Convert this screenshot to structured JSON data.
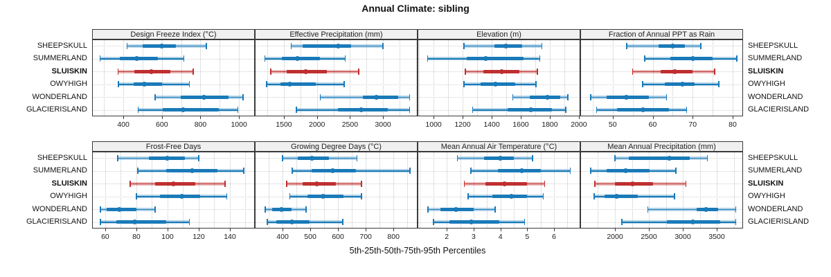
{
  "title": "Annual Climate: sibling",
  "axis_caption": "5th-25th-50th-75th-95th Percentiles",
  "percentile_labels": [
    "5th",
    "25th",
    "50th",
    "75th",
    "95th"
  ],
  "stations": [
    "SHEEPSKULL",
    "SUMMERLAND",
    "SLUISKIN",
    "OWYHIGH",
    "WONDERLAND",
    "GLACIERISLAND"
  ],
  "highlight_station": "SLUISKIN",
  "colors": {
    "series": "#1a7ab8",
    "highlight": "#be2f2f",
    "strip_bg": "#f0f0f0",
    "panel_border": "#3a3a3a",
    "grid": "#c4c4c4",
    "band_alpha": 0.32
  },
  "chart_data": {
    "type": "dotplot-interval",
    "layout_rows": 2,
    "layout_cols": 4,
    "percentiles": [
      5,
      25,
      50,
      75,
      95
    ],
    "panels": [
      {
        "title": "Design Freeze Index (°C)",
        "range": [
          238,
          1082
        ],
        "ticks": [
          400,
          600,
          800,
          1000
        ],
        "minor_step": 100,
        "values": {
          "SHEEPSKULL": [
            420,
            500,
            598,
            672,
            830
          ],
          "SUMMERLAND": [
            280,
            382,
            470,
            580,
            714
          ],
          "SLUISKIN": [
            373,
            456,
            546,
            644,
            762
          ],
          "OWYHIGH": [
            375,
            455,
            508,
            600,
            742
          ],
          "WONDERLAND": [
            565,
            696,
            819,
            944,
            1021
          ],
          "GLACIERISLAND": [
            476,
            605,
            711,
            894,
            994
          ]
        }
      },
      {
        "title": "Effective Precipitation (mm)",
        "range": [
          1060,
          3523
        ],
        "ticks": [
          1500,
          2000,
          2500,
          3000
        ],
        "minor_step": 250,
        "values": {
          "SHEEPSKULL": [
            1610,
            1780,
            2320,
            2520,
            3000
          ],
          "SUMMERLAND": [
            1210,
            1470,
            1700,
            2050,
            2430
          ],
          "SLUISKIN": [
            1300,
            1540,
            1830,
            2150,
            2630
          ],
          "OWYHIGH": [
            1240,
            1445,
            1590,
            1980,
            2410
          ],
          "WONDERLAND": [
            2050,
            2700,
            2900,
            3230,
            3400
          ],
          "GLACIERISLAND": [
            1690,
            2320,
            2670,
            3075,
            3400
          ]
        }
      },
      {
        "title": "Elevation (m)",
        "range": [
          890,
          2010
        ],
        "ticks": [
          1000,
          1200,
          1400,
          1600,
          1800,
          2000
        ],
        "minor_step": 100,
        "values": {
          "SHEEPSKULL": [
            1210,
            1420,
            1500,
            1610,
            1745
          ],
          "SUMMERLAND": [
            960,
            1230,
            1360,
            1620,
            1730
          ],
          "SLUISKIN": [
            1220,
            1345,
            1470,
            1590,
            1715
          ],
          "OWYHIGH": [
            1210,
            1325,
            1425,
            1560,
            1705
          ],
          "WONDERLAND": [
            1545,
            1660,
            1785,
            1870,
            1925
          ],
          "GLACIERISLAND": [
            1270,
            1510,
            1670,
            1815,
            1910
          ]
        }
      },
      {
        "title": "Fraction of Annual PPT as Rain",
        "range": [
          41.9,
          82.6
        ],
        "ticks": [
          50,
          60,
          70,
          80
        ],
        "minor_step": 5,
        "values": {
          "SHEEPSKULL": [
            53.5,
            61.5,
            65,
            68,
            72
          ],
          "SUMMERLAND": [
            58,
            64.5,
            70,
            75,
            81
          ],
          "SLUISKIN": [
            55,
            62,
            65.5,
            70,
            75.5
          ],
          "OWYHIGH": [
            57.5,
            63,
            67.5,
            70.5,
            76.5
          ],
          "WONDERLAND": [
            44.5,
            48.5,
            53.5,
            59,
            63.5
          ],
          "GLACIERISLAND": [
            46,
            51,
            57.5,
            64,
            68.5
          ]
        }
      },
      {
        "title": "Frost-Free Days",
        "range": [
          51.6,
          156
        ],
        "ticks": [
          60,
          80,
          100,
          120,
          140
        ],
        "minor_step": 10,
        "values": {
          "SHEEPSKULL": [
            68,
            88,
            100,
            111,
            120
          ],
          "SUMMERLAND": [
            81,
            99,
            116,
            132,
            149
          ],
          "SLUISKIN": [
            76,
            92,
            104,
            118,
            137
          ],
          "OWYHIGH": [
            80,
            95,
            109,
            121,
            138
          ],
          "WONDERLAND": [
            57,
            61,
            69,
            80,
            92
          ],
          "GLACIERISLAND": [
            57,
            67,
            79,
            99,
            114
          ]
        }
      },
      {
        "title": "Growing Degree Days (°C)",
        "range": [
          300,
          887
        ],
        "ticks": [
          400,
          500,
          600,
          700,
          800
        ],
        "minor_step": 50,
        "values": {
          "SHEEPSKULL": [
            400,
            455,
            505,
            568,
            668
          ],
          "SUMMERLAND": [
            435,
            505,
            580,
            665,
            860
          ],
          "SLUISKIN": [
            415,
            472,
            524,
            593,
            685
          ],
          "OWYHIGH": [
            426,
            489,
            545,
            620,
            685
          ],
          "WONDERLAND": [
            337,
            362,
            397,
            433,
            485
          ],
          "GLACIERISLAND": [
            345,
            378,
            433,
            497,
            617
          ]
        }
      },
      {
        "title": "Mean Annual Air Temperature (°C)",
        "range": [
          0.91,
          6.98
        ],
        "ticks": [
          2,
          3,
          4,
          5,
          6
        ],
        "minor_step": 0.5,
        "values": {
          "SHEEPSKULL": [
            2.4,
            3.4,
            4.0,
            4.5,
            5.2
          ],
          "SUMMERLAND": [
            2.9,
            3.9,
            4.8,
            5.5,
            6.6
          ],
          "SLUISKIN": [
            2.65,
            3.45,
            4.15,
            5.0,
            5.65
          ],
          "OWYHIGH": [
            2.8,
            3.7,
            4.4,
            5.0,
            5.6
          ],
          "WONDERLAND": [
            1.3,
            1.75,
            2.35,
            3.0,
            3.8
          ],
          "GLACIERISLAND": [
            1.5,
            2.1,
            2.9,
            3.95,
            4.9
          ]
        }
      },
      {
        "title": "Mean Annual Precipitation (mm)",
        "range": [
          1490,
          3887
        ],
        "ticks": [
          2000,
          2500,
          3000,
          3500
        ],
        "minor_step": 250,
        "values": {
          "SHEEPSKULL": [
            2000,
            2205,
            2805,
            3105,
            3360
          ],
          "SUMMERLAND": [
            1645,
            1875,
            2155,
            2510,
            2900
          ],
          "SLUISKIN": [
            1705,
            2000,
            2255,
            2560,
            3045
          ],
          "OWYHIGH": [
            1695,
            1845,
            2025,
            2340,
            2875
          ],
          "WONDERLAND": [
            2485,
            3200,
            3340,
            3520,
            3780
          ],
          "GLACIERISLAND": [
            2100,
            2765,
            3150,
            3550,
            3780
          ]
        }
      }
    ]
  }
}
